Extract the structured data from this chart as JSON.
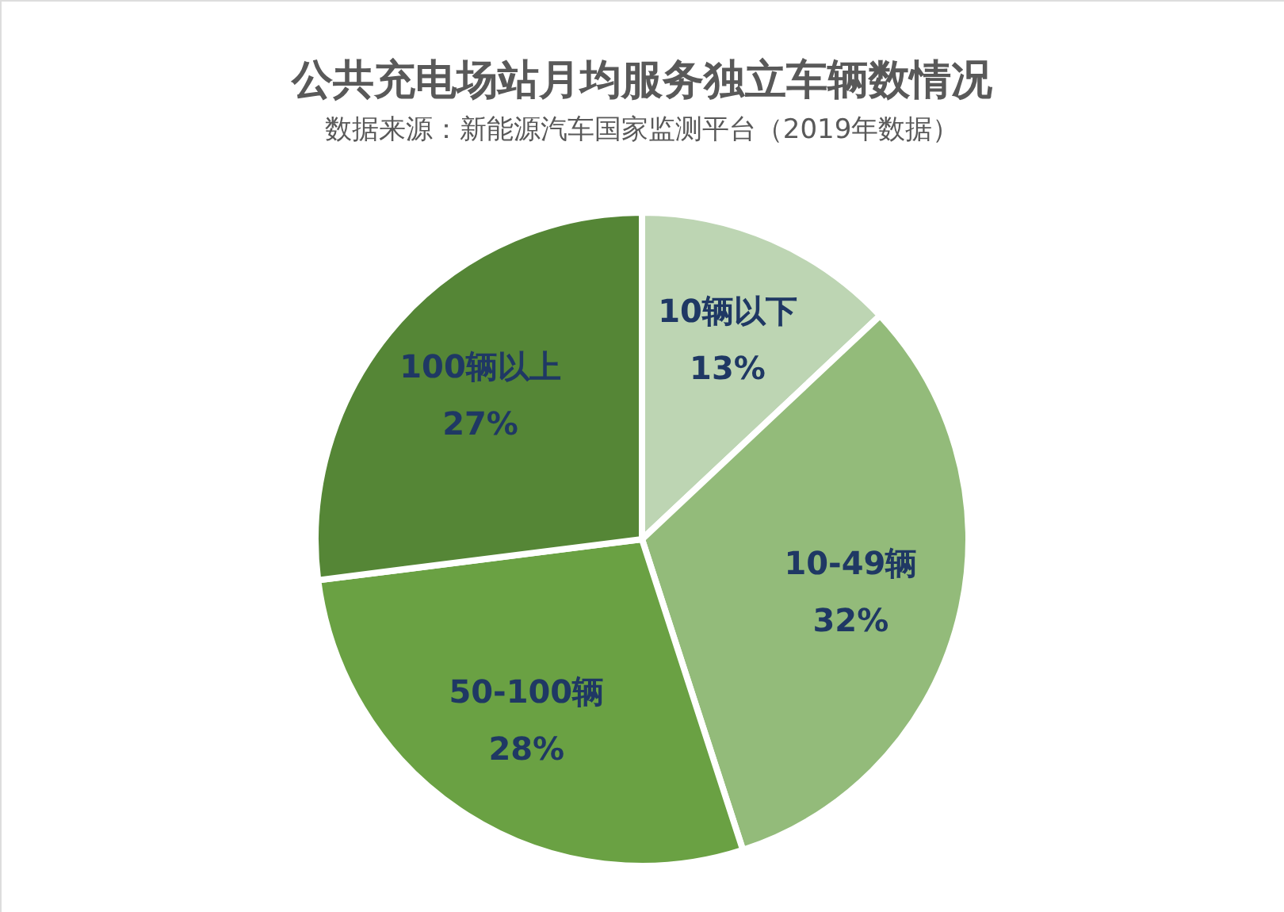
{
  "chart_data": {
    "type": "pie",
    "title": "公共充电场站月均服务独立车辆数情况",
    "subtitle": "数据来源：新能源汽车国家监测平台（2019年数据）",
    "categories": [
      "10辆以下",
      "10-49辆",
      "50-100辆",
      "100辆以上"
    ],
    "values": [
      13,
      32,
      28,
      27
    ],
    "colors": [
      "#bdd5b3",
      "#93bb7a",
      "#6aa143",
      "#558636"
    ],
    "value_labels": [
      "13%",
      "32%",
      "28%",
      "27%"
    ],
    "legend": false
  }
}
